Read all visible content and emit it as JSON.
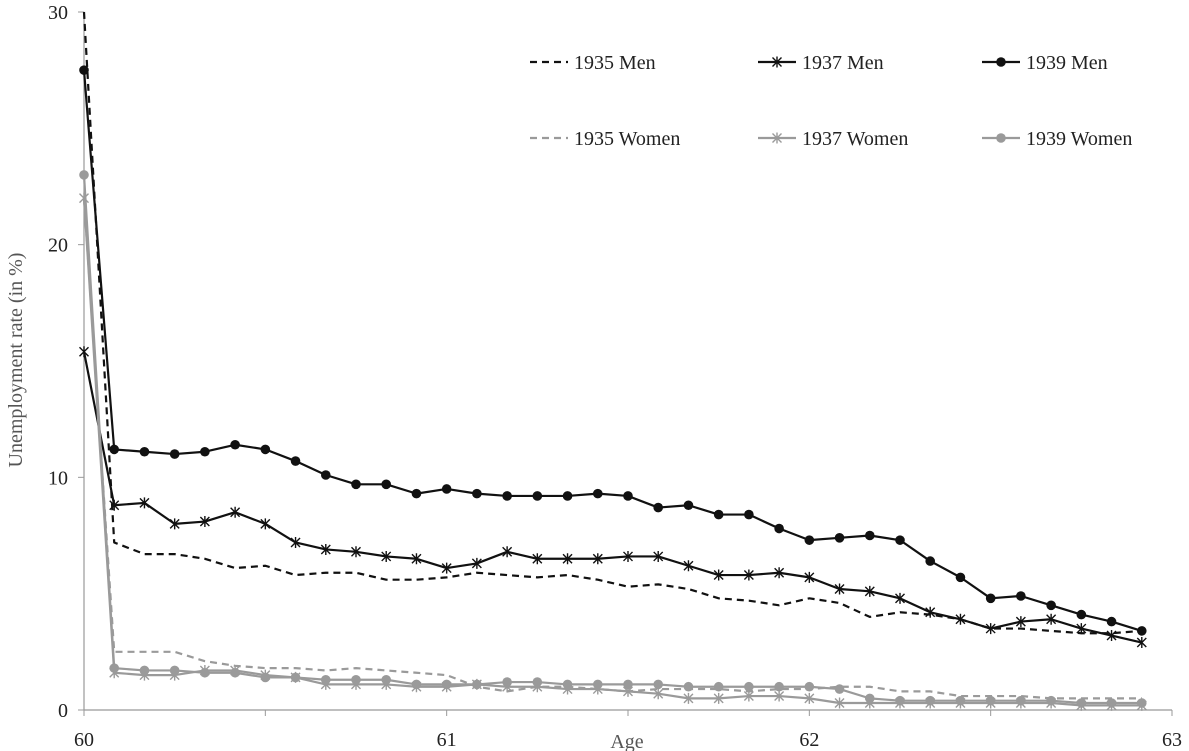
{
  "chart_data": {
    "type": "line",
    "title": "",
    "xlabel": "Age",
    "ylabel": "Unemployment rate (in %)",
    "xlim": [
      60,
      63
    ],
    "ylim": [
      0,
      30
    ],
    "x_ticks": [
      60,
      61,
      62,
      63
    ],
    "y_ticks": [
      0,
      10,
      20,
      30
    ],
    "grid": false,
    "legend": "top-right",
    "x": [
      60,
      60.0833,
      60.1667,
      60.25,
      60.3333,
      60.4167,
      60.5,
      60.5833,
      60.6667,
      60.75,
      60.8333,
      60.9167,
      61,
      61.0833,
      61.1667,
      61.25,
      61.3333,
      61.4167,
      61.5,
      61.5833,
      61.6667,
      61.75,
      61.8333,
      61.9167,
      62,
      62.0833,
      62.1667,
      62.25,
      62.3333,
      62.4167,
      62.5,
      62.5833,
      62.6667,
      62.75,
      62.8333,
      62.9167
    ],
    "series": [
      {
        "name": "1935 Men",
        "color": "#111111",
        "dash": "dashed",
        "marker": "none",
        "values": [
          30.0,
          7.2,
          6.7,
          6.7,
          6.5,
          6.1,
          6.2,
          5.8,
          5.9,
          5.9,
          5.6,
          5.6,
          5.7,
          5.9,
          5.8,
          5.7,
          5.8,
          5.6,
          5.3,
          5.4,
          5.2,
          4.8,
          4.7,
          4.5,
          4.8,
          4.6,
          4.0,
          4.2,
          4.1,
          3.9,
          3.5,
          3.5,
          3.4,
          3.3,
          3.3,
          3.4
        ]
      },
      {
        "name": "1937 Men",
        "color": "#111111",
        "dash": "solid",
        "marker": "star",
        "values": [
          15.4,
          8.8,
          8.9,
          8.0,
          8.1,
          8.5,
          8.0,
          7.2,
          6.9,
          6.8,
          6.6,
          6.5,
          6.1,
          6.3,
          6.8,
          6.5,
          6.5,
          6.5,
          6.6,
          6.6,
          6.2,
          5.8,
          5.8,
          5.9,
          5.7,
          5.2,
          5.1,
          4.8,
          4.2,
          3.9,
          3.5,
          3.8,
          3.9,
          3.5,
          3.2,
          2.9
        ]
      },
      {
        "name": "1939 Men",
        "color": "#111111",
        "dash": "solid",
        "marker": "circle",
        "values": [
          27.5,
          11.2,
          11.1,
          11.0,
          11.1,
          11.4,
          11.2,
          10.7,
          10.1,
          9.7,
          9.7,
          9.3,
          9.5,
          9.3,
          9.2,
          9.2,
          9.2,
          9.3,
          9.2,
          8.7,
          8.8,
          8.4,
          8.4,
          7.8,
          7.3,
          7.4,
          7.5,
          7.3,
          6.4,
          5.7,
          4.8,
          4.9,
          4.5,
          4.1,
          3.8,
          3.4
        ]
      },
      {
        "name": "1935 Women",
        "color": "#9a9a9a",
        "dash": "dashed",
        "marker": "none",
        "values": [
          22.0,
          2.5,
          2.5,
          2.5,
          2.1,
          1.9,
          1.8,
          1.8,
          1.7,
          1.8,
          1.7,
          1.6,
          1.5,
          1.0,
          0.8,
          1.0,
          1.0,
          0.9,
          0.8,
          0.9,
          0.9,
          0.9,
          0.8,
          0.9,
          0.9,
          1.0,
          1.0,
          0.8,
          0.8,
          0.6,
          0.6,
          0.6,
          0.5,
          0.5,
          0.5,
          0.5
        ]
      },
      {
        "name": "1937 Women",
        "color": "#9a9a9a",
        "dash": "solid",
        "marker": "star",
        "values": [
          22.0,
          1.6,
          1.5,
          1.5,
          1.7,
          1.7,
          1.5,
          1.4,
          1.1,
          1.1,
          1.1,
          1.0,
          1.0,
          1.1,
          1.0,
          1.0,
          0.9,
          0.9,
          0.8,
          0.7,
          0.5,
          0.5,
          0.6,
          0.6,
          0.5,
          0.3,
          0.3,
          0.3,
          0.3,
          0.3,
          0.3,
          0.3,
          0.3,
          0.2,
          0.2,
          0.2
        ]
      },
      {
        "name": "1939 Women",
        "color": "#9a9a9a",
        "dash": "solid",
        "marker": "circle",
        "values": [
          23.0,
          1.8,
          1.7,
          1.7,
          1.6,
          1.6,
          1.4,
          1.4,
          1.3,
          1.3,
          1.3,
          1.1,
          1.1,
          1.1,
          1.2,
          1.2,
          1.1,
          1.1,
          1.1,
          1.1,
          1.0,
          1.0,
          1.0,
          1.0,
          1.0,
          0.9,
          0.5,
          0.4,
          0.4,
          0.4,
          0.4,
          0.4,
          0.4,
          0.3,
          0.3,
          0.3
        ]
      }
    ]
  }
}
